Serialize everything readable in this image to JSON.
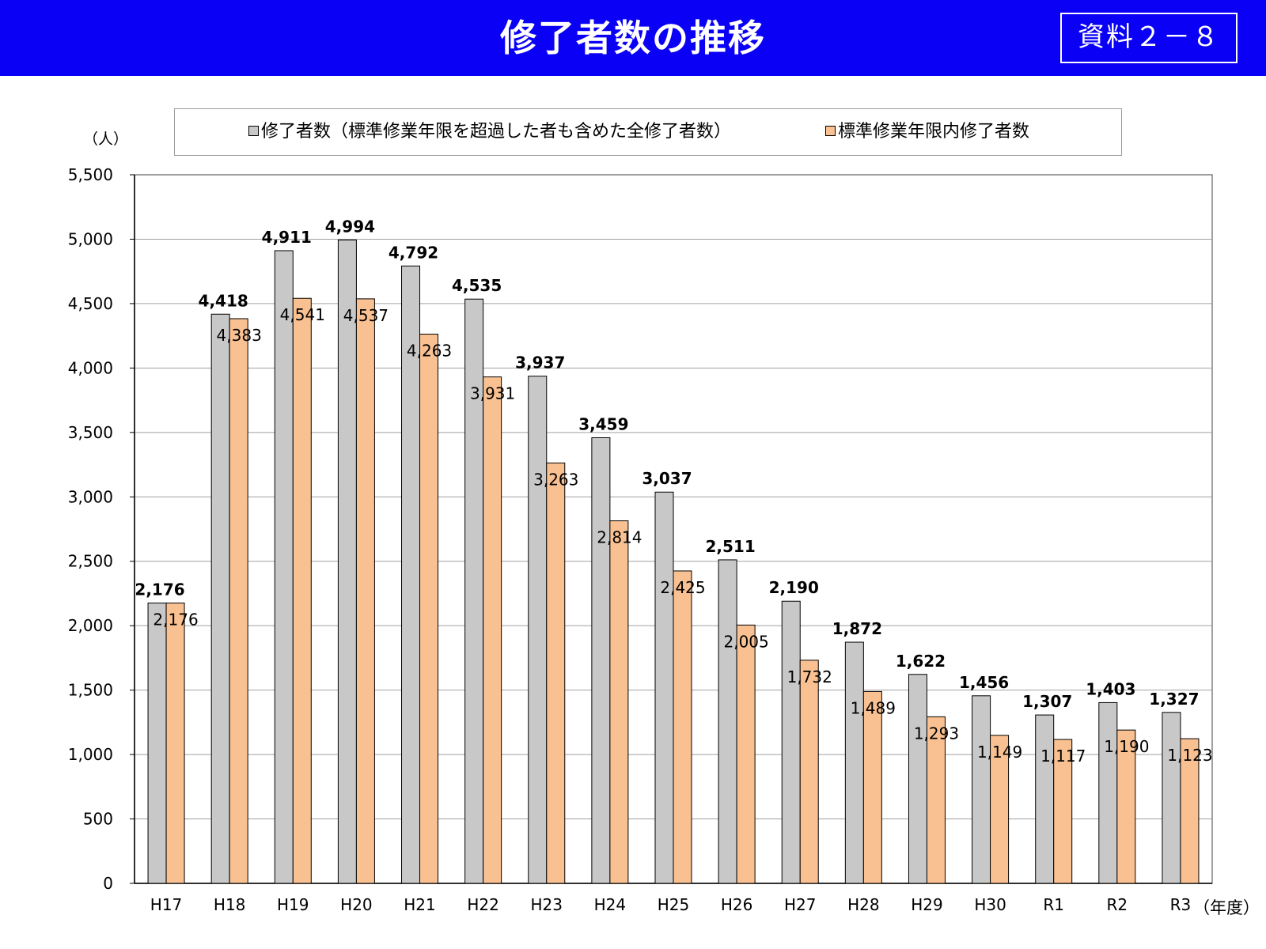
{
  "slide": {
    "title": "修了者数の推移",
    "doc_label": "資料２－８",
    "header_color": "#0a00f5"
  },
  "chart_data": {
    "type": "bar",
    "ylabel": "（人）",
    "xlabel": "（年度）",
    "ylim": [
      0,
      5500
    ],
    "ytick_step": 500,
    "grid": true,
    "legend_position": "top",
    "categories": [
      "H17",
      "H18",
      "H19",
      "H20",
      "H21",
      "H22",
      "H23",
      "H24",
      "H25",
      "H26",
      "H27",
      "H28",
      "H29",
      "H30",
      "R1",
      "R2",
      "R3"
    ],
    "series": [
      {
        "name": "修了者数（標準修業年限を超過した者も含めた全修了者数）",
        "color": "#c8c8c8",
        "values": [
          2176,
          4418,
          4911,
          4994,
          4792,
          4535,
          3937,
          3459,
          3037,
          2511,
          2190,
          1872,
          1622,
          1456,
          1307,
          1403,
          1327
        ]
      },
      {
        "name": "標準修業年限内修了者数",
        "color": "#f9c192",
        "values": [
          2176,
          4383,
          4541,
          4537,
          4263,
          3931,
          3263,
          2814,
          2425,
          2005,
          1732,
          1489,
          1293,
          1149,
          1117,
          1190,
          1123
        ]
      }
    ]
  }
}
